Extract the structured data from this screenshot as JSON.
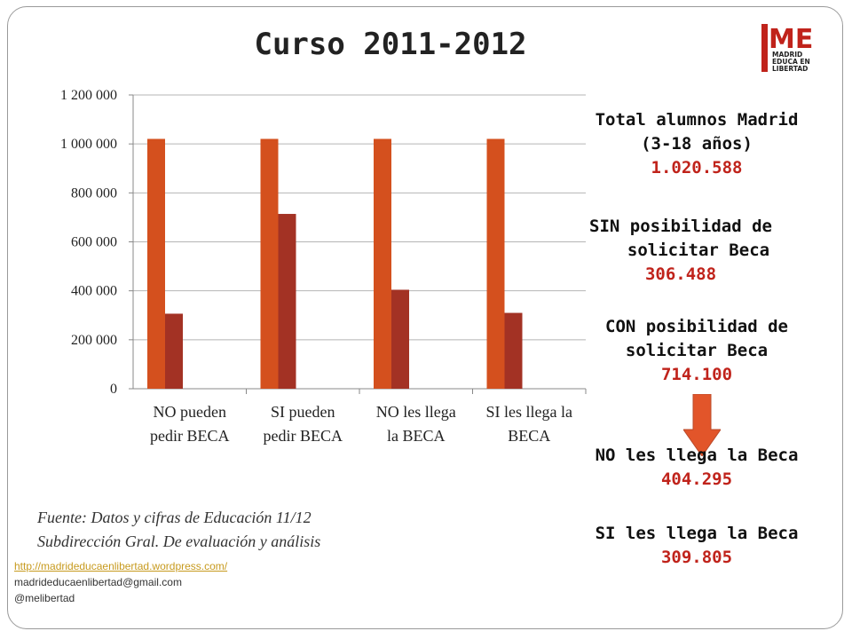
{
  "title": "Curso 2011-2012",
  "logo": {
    "letters": "ME",
    "line1": "MADRID",
    "line2": "EDUCA EN",
    "line3": "LIBERTAD",
    "color": "#c0231b"
  },
  "chart_data": {
    "type": "bar",
    "categories": [
      "NO pueden pedir BECA",
      "SI pueden pedir BECA",
      "NO les llega la BECA",
      "SI les llega la BECA"
    ],
    "category_lines": [
      [
        "NO pueden",
        "pedir BECA"
      ],
      [
        "SI pueden",
        "pedir BECA"
      ],
      [
        "NO les llega",
        "la BECA"
      ],
      [
        "SI les llega la",
        "BECA"
      ]
    ],
    "series": [
      {
        "values": [
          1020588,
          1020588,
          1020588,
          1020588
        ],
        "color": "#d4501e"
      },
      {
        "values": [
          306488,
          714100,
          404295,
          309805
        ],
        "color": "#a33224"
      }
    ],
    "ylim": [
      0,
      1200000
    ],
    "yticks": [
      0,
      200000,
      400000,
      600000,
      800000,
      1000000,
      1200000
    ],
    "ytick_labels": [
      "0",
      "200 000",
      "400 000",
      "600 000",
      "800 000",
      "1 000 000",
      "1 200 000"
    ],
    "grid": true,
    "title": "",
    "xlabel": "",
    "ylabel": ""
  },
  "side": {
    "total_label_1": "Total alumnos Madrid",
    "total_label_2": "(3-18 años)",
    "total_value": "1.020.588",
    "sin_label_1": "SIN posibilidad de",
    "sin_label_2": "solicitar Beca",
    "sin_value": "306.488",
    "con_label_1": "CON posibilidad de",
    "con_label_2": "solicitar Beca",
    "con_value": "714.100",
    "no_label": "NO les llega la Beca",
    "no_value": "404.295",
    "si_label": "SI les llega la Beca",
    "si_value": "309.805",
    "arrow_color": "#e2552a"
  },
  "source": {
    "line1": "Fuente: Datos y cifras de Educación 11/12",
    "line2": "Subdirección Gral. De evaluación y análisis"
  },
  "links": {
    "url": "http://madrideducaenlibertad.wordpress.com/",
    "email": "madrideducaenlibertad@gmail.com",
    "twitter": "@melibertad"
  }
}
